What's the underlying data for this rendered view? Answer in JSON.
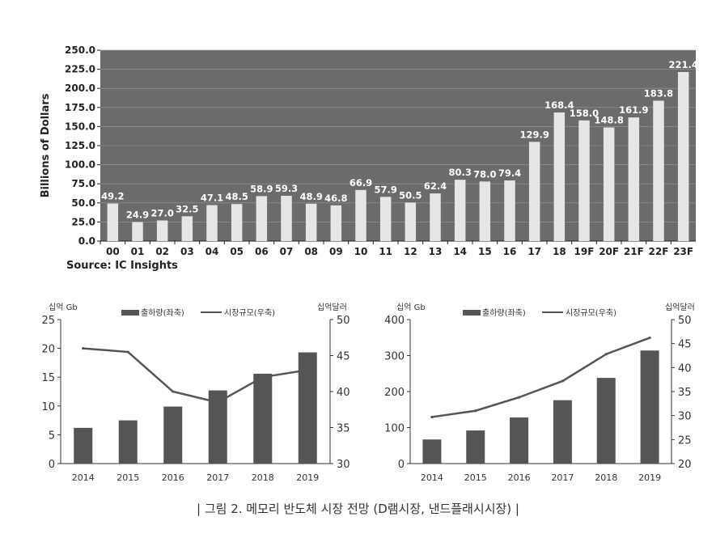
{
  "chart_data": [
    {
      "type": "bar",
      "ylabel": "Billions of Dollars",
      "source": "Source:  IC Insights",
      "categories": [
        "00",
        "01",
        "02",
        "03",
        "04",
        "05",
        "06",
        "07",
        "08",
        "09",
        "10",
        "11",
        "12",
        "13",
        "14",
        "15",
        "16",
        "17",
        "18",
        "19F",
        "20F",
        "21F",
        "22F",
        "23F"
      ],
      "values": [
        49.2,
        24.9,
        27.0,
        32.5,
        47.1,
        48.5,
        58.9,
        59.3,
        48.9,
        46.8,
        66.9,
        57.9,
        50.5,
        62.4,
        80.3,
        78.0,
        79.4,
        129.9,
        168.4,
        158.0,
        148.8,
        161.9,
        183.8,
        221.4
      ],
      "value_labels": [
        "49.2",
        "24.9",
        "27.0",
        "32.5",
        "47.1",
        "48.5",
        "58.9",
        "59.3",
        "48.9",
        "46.8",
        "66.9",
        "57.9",
        "50.5",
        "62.4",
        "80.3",
        "78.0",
        "79.4",
        "129.9",
        "168.4",
        "158.0",
        "148.8",
        "161.9",
        "183.8",
        "221.4"
      ],
      "ylim": [
        0,
        250
      ],
      "yticks": [
        "0.0",
        "25.0",
        "50.0",
        "75.0",
        "100.0",
        "125.0",
        "150.0",
        "175.0",
        "200.0",
        "225.0",
        "250.0"
      ],
      "colors": {
        "plot_bg": "#6b6b6b",
        "bar": "#e6e6e6",
        "grid": "#9a9a9a"
      }
    },
    {
      "type": "bar+line",
      "left_unit": "십억 Gb",
      "right_unit": "십억달러",
      "categories": [
        "2014",
        "2015",
        "2016",
        "2017",
        "2018",
        "2019"
      ],
      "series": [
        {
          "name": "출하량(좌축)",
          "type": "bar",
          "axis": "left",
          "values": [
            6.2,
            7.5,
            9.9,
            12.7,
            15.6,
            19.3
          ]
        },
        {
          "name": "시장규모(우축)",
          "type": "line",
          "axis": "right",
          "values": [
            46.0,
            45.5,
            40.0,
            38.5,
            42.0,
            43.0
          ]
        }
      ],
      "left_ylim": [
        0,
        25
      ],
      "right_ylim": [
        30,
        50
      ],
      "left_ticks": [
        "0",
        "5",
        "10",
        "15",
        "20",
        "25"
      ],
      "right_ticks": [
        "30",
        "35",
        "40",
        "45",
        "50"
      ],
      "colors": {
        "bar": "#555555",
        "line": "#555555"
      }
    },
    {
      "type": "bar+line",
      "left_unit": "십억 Gb",
      "right_unit": "십억달러",
      "categories": [
        "2014",
        "2015",
        "2016",
        "2017",
        "2018",
        "2019"
      ],
      "series": [
        {
          "name": "출하량(좌축)",
          "type": "bar",
          "axis": "left",
          "values": [
            67,
            92,
            128,
            176,
            238,
            314
          ]
        },
        {
          "name": "시장규모(우축)",
          "type": "line",
          "axis": "right",
          "values": [
            29.7,
            31.0,
            33.8,
            37.2,
            42.8,
            46.2
          ]
        }
      ],
      "left_ylim": [
        0,
        400
      ],
      "right_ylim": [
        20,
        50
      ],
      "left_ticks": [
        "0",
        "100",
        "200",
        "300",
        "400"
      ],
      "right_ticks": [
        "20",
        "25",
        "30",
        "35",
        "40",
        "45",
        "50"
      ],
      "colors": {
        "bar": "#555555",
        "line": "#555555"
      }
    }
  ],
  "caption": "| 그림 2. 메모리 반도체 시장 전망 (D램시장, 낸드플래시시장) |"
}
